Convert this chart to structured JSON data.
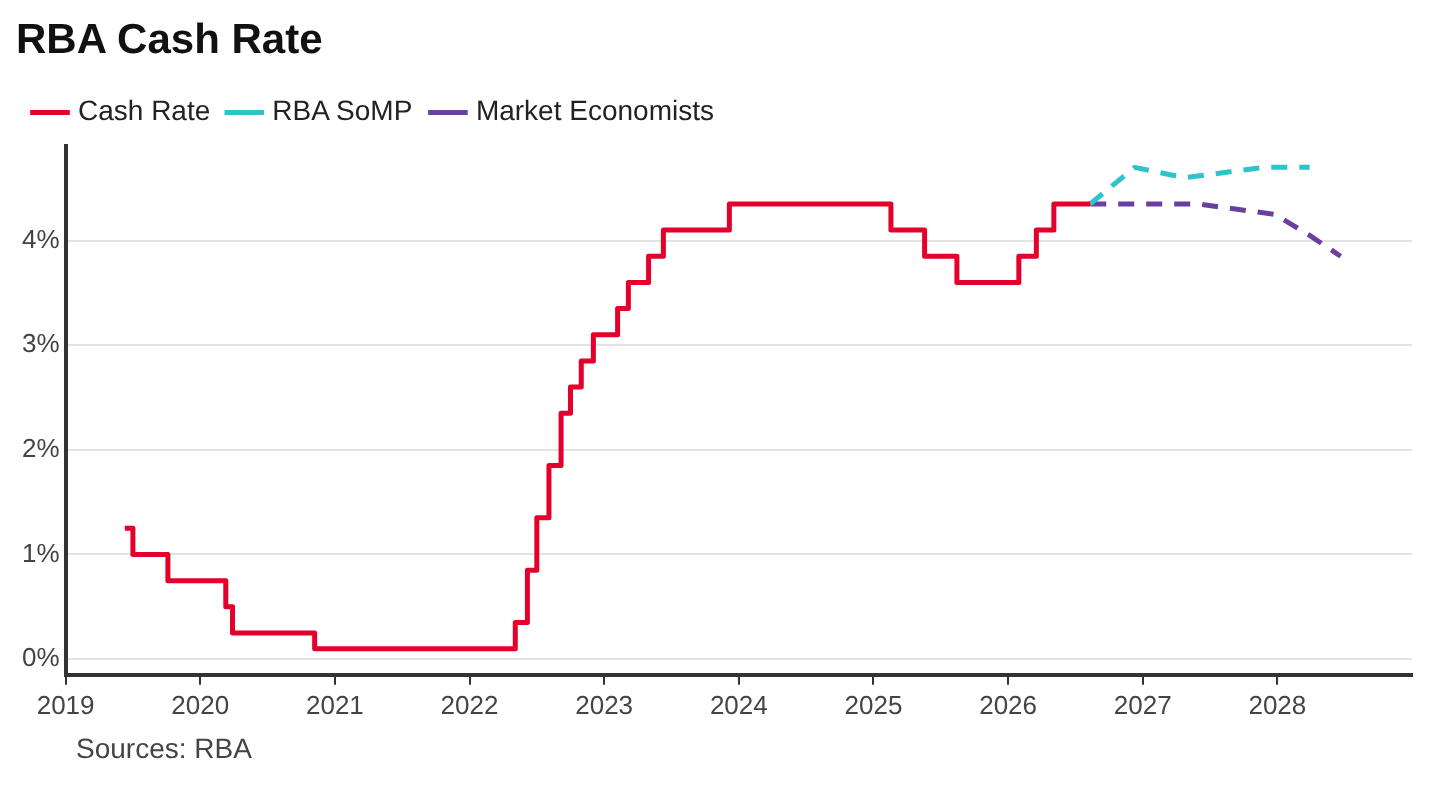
{
  "chart_data": {
    "type": "step",
    "title": "RBA Cash Rate",
    "annotations": [
      "Sources: RBA"
    ],
    "series": [
      {
        "name": "Cash Rate",
        "color": "#e4002b",
        "line_style": "solid",
        "x": [
          2019.44,
          2019.5,
          2019.76,
          2020.19,
          2020.24,
          2020.85,
          2022.34,
          2022.43,
          2022.5,
          2022.59,
          2022.68,
          2022.75,
          2022.83,
          2022.92,
          2023.1,
          2023.18,
          2023.33,
          2023.44,
          2023.93,
          2025.13,
          2025.38,
          2025.62,
          2026.08,
          2026.21,
          2026.34,
          2026.61
        ],
        "values": [
          1.25,
          1.0,
          0.75,
          0.5,
          0.25,
          0.1,
          0.35,
          0.85,
          1.35,
          1.85,
          2.35,
          2.6,
          2.85,
          3.1,
          3.35,
          3.6,
          3.85,
          4.1,
          4.35,
          4.1,
          3.85,
          3.6,
          3.85,
          4.1,
          4.35,
          4.35
        ]
      },
      {
        "name": "RBA SoMP",
        "type": "line",
        "color": "#2ec4c9",
        "line_style": "dashed",
        "x": [
          2026.61,
          2026.94,
          2027.31,
          2027.9,
          2028.24
        ],
        "values": [
          4.35,
          4.7,
          4.6,
          4.7,
          4.7
        ]
      },
      {
        "name": "Market Economists",
        "type": "line",
        "color": "#6b3fa0",
        "line_style": "dashed",
        "x": [
          2026.61,
          2027.41,
          2027.98,
          2028.24,
          2028.47
        ],
        "values": [
          4.35,
          4.35,
          4.25,
          4.05,
          3.85
        ]
      }
    ],
    "xlim": [
      2019,
      2029
    ],
    "xticks": [
      2019,
      2020,
      2021,
      2022,
      2023,
      2024,
      2025,
      2026,
      2027,
      2028
    ],
    "ylim": [
      -0.15,
      4.9
    ],
    "yticks": [
      {
        "value": 0,
        "label": "0%"
      },
      {
        "value": 1,
        "label": "1%"
      },
      {
        "value": 2,
        "label": "2%"
      },
      {
        "value": 3,
        "label": "3%"
      },
      {
        "value": 4,
        "label": "4%"
      }
    ],
    "grid": "y",
    "legend": "top left",
    "marker": "none"
  }
}
